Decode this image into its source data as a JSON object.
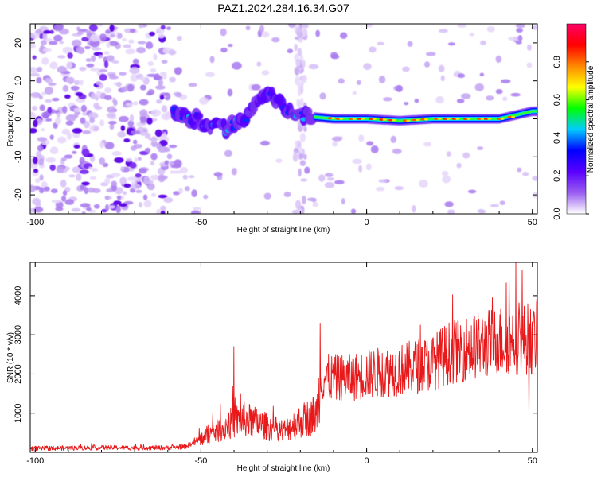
{
  "figure": {
    "title": "PAZ1.2024.284.16.34.G07"
  },
  "chart_data": [
    {
      "id": "spectrogram",
      "type": "heatmap",
      "xlabel": "Height of straight line (km)",
      "ylabel": "Frequency (Hz)",
      "xlim": [
        -101.5,
        51.5
      ],
      "ylim": [
        -25,
        25
      ],
      "xticks": [
        -100,
        -50,
        0,
        50
      ],
      "yticks": [
        -20,
        -10,
        0,
        10,
        20
      ],
      "colorbar": {
        "label": "Normalized spectral amplitude",
        "range": [
          0,
          1
        ],
        "ticks": [
          "0.0",
          "0.2",
          "0.4",
          "0.6",
          "0.8"
        ],
        "tick_values": [
          0,
          0.2,
          0.4,
          0.6,
          0.8
        ],
        "colormap": [
          "#ffffff",
          "#9a5ef0",
          "#5a00ff",
          "#0000ff",
          "#00ccff",
          "#00ff00",
          "#ffff00",
          "#ff8800",
          "#ff0000",
          "#ff0066"
        ]
      },
      "ridge": [
        {
          "x": -58,
          "f": 1.5
        },
        {
          "x": -52,
          "f": 0
        },
        {
          "x": -46,
          "f": -1.5
        },
        {
          "x": -42,
          "f": -2.5
        },
        {
          "x": -38,
          "f": -1
        },
        {
          "x": -34,
          "f": 3.5
        },
        {
          "x": -30,
          "f": 7
        },
        {
          "x": -27,
          "f": 5
        },
        {
          "x": -24,
          "f": 2
        },
        {
          "x": -20,
          "f": 1
        },
        {
          "x": -16,
          "f": 0.5
        },
        {
          "x": -10,
          "f": 0
        },
        {
          "x": 0,
          "f": 0
        },
        {
          "x": 10,
          "f": -0.5
        },
        {
          "x": 20,
          "f": 0
        },
        {
          "x": 30,
          "f": 0
        },
        {
          "x": 40,
          "f": 0
        },
        {
          "x": 45,
          "f": 1
        },
        {
          "x": 50,
          "f": 2
        }
      ]
    },
    {
      "id": "snr",
      "type": "line",
      "xlabel": "Height of straight line (km)",
      "ylabel": "SNR (10 * v/v)",
      "xlim": [
        -101.5,
        51.5
      ],
      "ylim": [
        0,
        4850
      ],
      "xticks": [
        -100,
        -50,
        0,
        50
      ],
      "yticks": [
        1000,
        2000,
        3000,
        4000
      ],
      "series": [
        {
          "color": "#e8191b",
          "points": [
            [
              -101,
              100
            ],
            [
              -90,
              110
            ],
            [
              -80,
              120
            ],
            [
              -70,
              115
            ],
            [
              -60,
              120
            ],
            [
              -55,
              140
            ],
            [
              -52,
              250
            ],
            [
              -48,
              450
            ],
            [
              -45,
              550
            ],
            [
              -42,
              700
            ],
            [
              -38,
              850
            ],
            [
              -35,
              800
            ],
            [
              -30,
              650
            ],
            [
              -25,
              550
            ],
            [
              -20,
              800
            ],
            [
              -17,
              900
            ],
            [
              -15,
              1000
            ],
            [
              -14,
              1900
            ],
            [
              -10,
              1900
            ],
            [
              -5,
              1900
            ],
            [
              0,
              2000
            ],
            [
              5,
              2050
            ],
            [
              10,
              2100
            ],
            [
              15,
              2200
            ],
            [
              20,
              2300
            ],
            [
              25,
              2550
            ],
            [
              30,
              2650
            ],
            [
              35,
              2750
            ],
            [
              40,
              2850
            ],
            [
              45,
              2900
            ],
            [
              50,
              2900
            ],
            [
              51.5,
              2900
            ]
          ],
          "peaks": [
            [
              -40,
              2700
            ],
            [
              -38,
              1500
            ],
            [
              -14,
              3300
            ],
            [
              38,
              3950
            ],
            [
              43,
              4550
            ],
            [
              45,
              4850
            ],
            [
              47,
              4650
            ],
            [
              49,
              850
            ]
          ]
        }
      ]
    }
  ]
}
